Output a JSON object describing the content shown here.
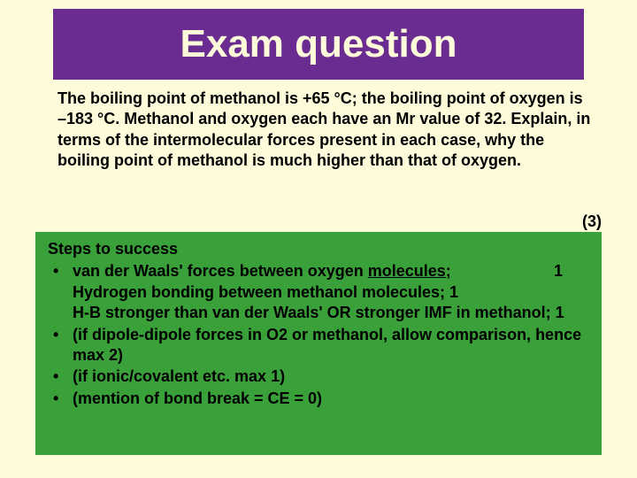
{
  "colors": {
    "slide_bg": "#fdfbd9",
    "title_bg": "#6a2c91",
    "title_fg": "#fdfbd9",
    "answer_bg": "#3aa13a",
    "text": "#000000"
  },
  "typography": {
    "font_family": "Comic Sans MS",
    "title_fontsize": 44,
    "body_fontsize": 18,
    "weight": "bold"
  },
  "title": "Exam question",
  "question": "The boiling point of methanol is +65 °C; the boiling point of oxygen is –183 °C. Methanol and oxygen each have an Mr value of 32. Explain, in terms of the intermolecular forces present in each case, why the boiling point of methanol is much higher than that of oxygen.",
  "marks_label": "(3)",
  "answer": {
    "heading": "Steps to success",
    "items": [
      {
        "line1_pre": "van der Waals' forces between oxygen ",
        "line1_underlined": "molecules;",
        "line1_mark": "1",
        "line2": "Hydrogen bonding between methanol molecules;  1",
        "line3": "H-B stronger than van der Waals' OR stronger IMF in methanol;   1"
      },
      {
        "text": "(if dipole-dipole forces in O2 or methanol, allow comparison, hence max 2)"
      },
      {
        "text": "(if ionic/covalent etc. max 1)"
      },
      {
        "text": "(mention of bond break = CE = 0)"
      }
    ]
  }
}
